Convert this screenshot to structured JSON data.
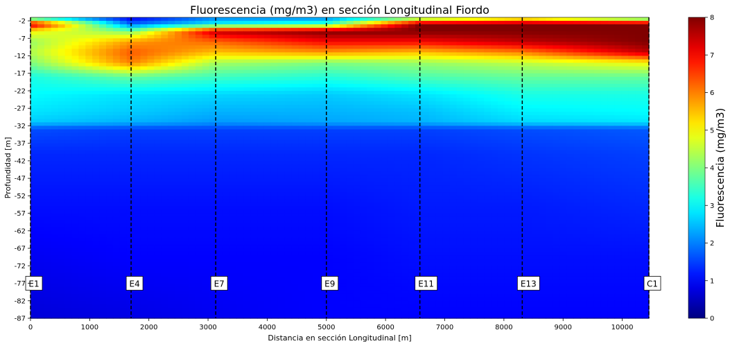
{
  "chart_data": {
    "type": "heatmap",
    "title": "Fluorescencia (mg/m3) en sección Longitudinal Fiordo",
    "xlabel": "Distancia en sección Longitudinal [m]",
    "ylabel": "Profundidad [m]",
    "xlim": [
      0,
      10450
    ],
    "ylim": [
      -87,
      -1
    ],
    "x_ticks": [
      0,
      1000,
      2000,
      3000,
      4000,
      5000,
      6000,
      7000,
      8000,
      9000,
      10000
    ],
    "y_ticks": [
      -2,
      -7,
      -12,
      -17,
      -22,
      -27,
      -32,
      -37,
      -42,
      -47,
      -52,
      -57,
      -62,
      -67,
      -72,
      -77,
      -82,
      -87
    ],
    "colorbar": {
      "label": "Fluorescencia (mg/m3)",
      "range": [
        0,
        8
      ],
      "ticks": [
        0,
        1,
        2,
        3,
        4,
        5,
        6,
        7,
        8
      ],
      "colormap": "jet"
    },
    "stations": [
      {
        "name": "E1",
        "x": 0
      },
      {
        "name": "E4",
        "x": 1700
      },
      {
        "name": "E7",
        "x": 3130
      },
      {
        "name": "E9",
        "x": 5000
      },
      {
        "name": "E11",
        "x": 6580
      },
      {
        "name": "E13",
        "x": 8310
      },
      {
        "name": "C1",
        "x": 10450
      }
    ],
    "station_label_depth": -77,
    "station_profiles": [
      {
        "station": "E1",
        "depths": [
          -1,
          -3,
          -5,
          -8,
          -11,
          -14,
          -18,
          -23,
          -28,
          -31,
          -33,
          -40,
          -55,
          -70,
          -87
        ],
        "values": [
          3.0,
          7.5,
          5.0,
          4.2,
          4.4,
          4.0,
          3.2,
          3.0,
          2.8,
          2.6,
          1.6,
          1.3,
          1.1,
          0.9,
          0.7
        ]
      },
      {
        "station": "E4",
        "depths": [
          -1,
          -3,
          -5,
          -8,
          -11,
          -14,
          -18,
          -23,
          -28,
          -31,
          -33,
          -40,
          -55,
          -70,
          -87
        ],
        "values": [
          0.9,
          1.8,
          4.0,
          5.8,
          6.3,
          6.0,
          3.8,
          2.8,
          2.6,
          2.4,
          1.5,
          1.3,
          1.1,
          1.0,
          0.8
        ]
      },
      {
        "station": "E7",
        "depths": [
          -1,
          -3,
          -5,
          -8,
          -11,
          -14,
          -18,
          -23,
          -28,
          -31,
          -33,
          -40,
          -55,
          -70,
          -87
        ],
        "values": [
          2.0,
          3.0,
          7.5,
          6.2,
          5.5,
          4.3,
          3.5,
          2.7,
          2.4,
          2.2,
          1.5,
          1.3,
          1.1,
          1.0,
          0.9
        ]
      },
      {
        "station": "E9",
        "depths": [
          -1,
          -3,
          -5,
          -8,
          -11,
          -14,
          -18,
          -23,
          -28,
          -31,
          -33,
          -40,
          -55,
          -70,
          -87
        ],
        "values": [
          2.0,
          3.5,
          8.0,
          7.0,
          5.8,
          4.0,
          3.3,
          2.6,
          2.4,
          2.3,
          1.5,
          1.3,
          1.1,
          1.0,
          1.0
        ]
      },
      {
        "station": "E11",
        "depths": [
          -1,
          -3,
          -5,
          -8,
          -11,
          -14,
          -18,
          -23,
          -28,
          -31,
          -33,
          -40,
          -55,
          -70,
          -87
        ],
        "values": [
          3.5,
          8.0,
          8.0,
          7.0,
          5.5,
          4.2,
          3.6,
          2.8,
          2.5,
          2.4,
          1.5,
          1.3,
          1.2,
          1.1,
          1.0
        ]
      },
      {
        "station": "E13",
        "depths": [
          -1,
          -3,
          -5,
          -8,
          -11,
          -14,
          -18,
          -23,
          -28,
          -31,
          -33,
          -40,
          -55,
          -70,
          -87
        ],
        "values": [
          4.5,
          8.0,
          8.0,
          7.5,
          6.0,
          4.5,
          3.8,
          3.2,
          2.9,
          2.7,
          1.6,
          1.4,
          1.2,
          1.1,
          1.0
        ]
      },
      {
        "station": "C1",
        "depths": [
          -1,
          -3,
          -5,
          -8,
          -11,
          -14,
          -18,
          -23,
          -28,
          -31,
          -33,
          -40,
          -55,
          -70,
          -87
        ],
        "values": [
          3.0,
          8.0,
          8.0,
          8.0,
          7.5,
          5.0,
          3.8,
          3.2,
          3.0,
          2.8,
          1.7,
          1.5,
          1.3,
          1.1,
          1.0
        ]
      }
    ]
  }
}
